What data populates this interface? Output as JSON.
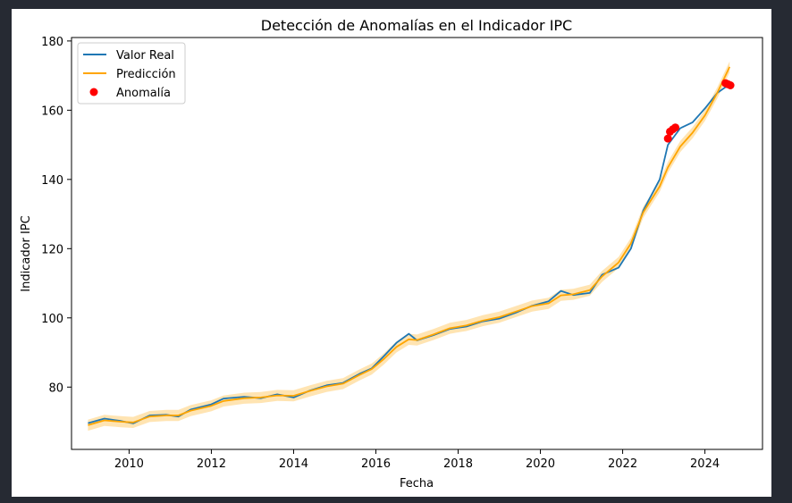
{
  "chart_data": {
    "type": "line",
    "title": "Detección de Anomalías en el Indicador IPC",
    "xlabel": "Fecha",
    "ylabel": "Indicador IPC",
    "xlim": [
      2008.6,
      2025.4
    ],
    "ylim": [
      62,
      181
    ],
    "x_ticks": [
      2010,
      2012,
      2014,
      2016,
      2018,
      2020,
      2022,
      2024
    ],
    "y_ticks": [
      80,
      100,
      120,
      140,
      160,
      180
    ],
    "grid": false,
    "legend_position": "upper-left",
    "confidence_band_halfwidth": 1.6,
    "series": [
      {
        "name": "Valor Real",
        "color": "#1f77b4",
        "points": [
          [
            2009.0,
            69.6
          ],
          [
            2009.4,
            70.9
          ],
          [
            2009.8,
            70.2
          ],
          [
            2010.1,
            69.5
          ],
          [
            2010.5,
            71.8
          ],
          [
            2010.9,
            72.0
          ],
          [
            2011.2,
            71.5
          ],
          [
            2011.5,
            73.5
          ],
          [
            2012.0,
            75.0
          ],
          [
            2012.3,
            76.7
          ],
          [
            2012.8,
            77.2
          ],
          [
            2013.2,
            76.8
          ],
          [
            2013.6,
            77.9
          ],
          [
            2014.0,
            77.0
          ],
          [
            2014.4,
            79.0
          ],
          [
            2014.8,
            80.5
          ],
          [
            2015.2,
            81.2
          ],
          [
            2015.6,
            83.8
          ],
          [
            2015.9,
            85.4
          ],
          [
            2016.2,
            89.0
          ],
          [
            2016.5,
            92.8
          ],
          [
            2016.8,
            95.4
          ],
          [
            2017.0,
            93.5
          ],
          [
            2017.4,
            95.0
          ],
          [
            2017.8,
            96.8
          ],
          [
            2018.2,
            97.5
          ],
          [
            2018.6,
            99.0
          ],
          [
            2019.0,
            99.8
          ],
          [
            2019.4,
            101.5
          ],
          [
            2019.8,
            103.5
          ],
          [
            2020.2,
            104.8
          ],
          [
            2020.5,
            107.8
          ],
          [
            2020.8,
            106.6
          ],
          [
            2021.2,
            107.2
          ],
          [
            2021.5,
            112.5
          ],
          [
            2021.9,
            114.5
          ],
          [
            2022.2,
            120.0
          ],
          [
            2022.5,
            131.0
          ],
          [
            2022.9,
            140.0
          ],
          [
            2023.1,
            150.0
          ],
          [
            2023.4,
            154.8
          ],
          [
            2023.7,
            156.5
          ],
          [
            2024.0,
            160.5
          ],
          [
            2024.3,
            165.0
          ],
          [
            2024.6,
            167.5
          ]
        ]
      },
      {
        "name": "Predicción",
        "color": "#ffa500",
        "points": [
          [
            2009.0,
            69.0
          ],
          [
            2009.4,
            70.4
          ],
          [
            2009.8,
            70.0
          ],
          [
            2010.1,
            69.8
          ],
          [
            2010.5,
            71.5
          ],
          [
            2010.9,
            71.8
          ],
          [
            2011.2,
            71.8
          ],
          [
            2011.5,
            73.2
          ],
          [
            2012.0,
            74.6
          ],
          [
            2012.3,
            76.0
          ],
          [
            2012.8,
            76.8
          ],
          [
            2013.2,
            77.0
          ],
          [
            2013.6,
            77.6
          ],
          [
            2014.0,
            77.5
          ],
          [
            2014.4,
            78.9
          ],
          [
            2014.8,
            80.2
          ],
          [
            2015.2,
            81.0
          ],
          [
            2015.6,
            83.5
          ],
          [
            2015.9,
            85.2
          ],
          [
            2016.2,
            88.2
          ],
          [
            2016.5,
            91.6
          ],
          [
            2016.8,
            93.8
          ],
          [
            2017.0,
            93.6
          ],
          [
            2017.4,
            95.2
          ],
          [
            2017.8,
            97.0
          ],
          [
            2018.2,
            97.8
          ],
          [
            2018.6,
            99.2
          ],
          [
            2019.0,
            100.2
          ],
          [
            2019.4,
            101.8
          ],
          [
            2019.8,
            103.4
          ],
          [
            2020.2,
            104.2
          ],
          [
            2020.5,
            106.5
          ],
          [
            2020.8,
            106.8
          ],
          [
            2021.2,
            108.0
          ],
          [
            2021.5,
            112.0
          ],
          [
            2021.9,
            116.0
          ],
          [
            2022.2,
            121.5
          ],
          [
            2022.5,
            130.5
          ],
          [
            2022.9,
            138.0
          ],
          [
            2023.1,
            143.5
          ],
          [
            2023.4,
            149.5
          ],
          [
            2023.7,
            153.5
          ],
          [
            2024.0,
            158.5
          ],
          [
            2024.3,
            165.0
          ],
          [
            2024.6,
            172.5
          ]
        ]
      }
    ],
    "anomalies": {
      "name": "Anomalía",
      "color": "#ff0000",
      "points": [
        [
          2023.1,
          151.8
        ],
        [
          2023.15,
          153.8
        ],
        [
          2023.22,
          154.5
        ],
        [
          2023.28,
          155.0
        ],
        [
          2024.5,
          167.8
        ],
        [
          2024.56,
          167.5
        ],
        [
          2024.62,
          167.2
        ]
      ]
    }
  }
}
